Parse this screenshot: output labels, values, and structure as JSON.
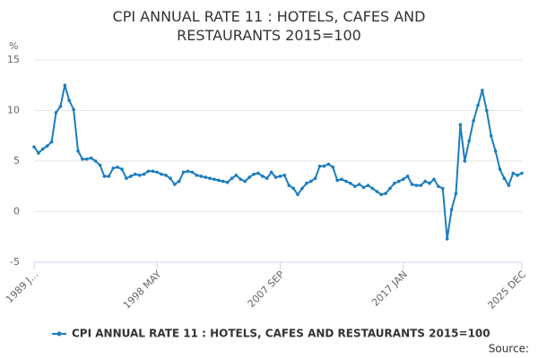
{
  "chart_data": {
    "type": "line",
    "title": "CPI ANNUAL RATE 11 : HOTELS, CAFES AND RESTAURANTS 2015=100",
    "y_unit": "%",
    "source": "Source:",
    "categories": [
      "1989 J...",
      null,
      null,
      null,
      null,
      null,
      null,
      null,
      null,
      null,
      null,
      null,
      null,
      null,
      null,
      null,
      null,
      null,
      null,
      null,
      null,
      null,
      null,
      null,
      null,
      null,
      null,
      null,
      "1998 MAY",
      null,
      null,
      null,
      null,
      null,
      null,
      null,
      null,
      null,
      null,
      null,
      null,
      null,
      null,
      null,
      null,
      null,
      null,
      null,
      null,
      null,
      null,
      null,
      null,
      null,
      null,
      null,
      "2007 SEP",
      null,
      null,
      null,
      null,
      null,
      null,
      null,
      null,
      null,
      null,
      null,
      null,
      null,
      null,
      null,
      null,
      null,
      null,
      null,
      null,
      null,
      null,
      null,
      null,
      null,
      null,
      null,
      "2017 JAN",
      null,
      null,
      null,
      null,
      null,
      null,
      null,
      null,
      null,
      null,
      null,
      null,
      null,
      null,
      null,
      null,
      null,
      null,
      null,
      null,
      null,
      null,
      null,
      null,
      null,
      null,
      "2025 DEC"
    ],
    "series": [
      {
        "name": "CPI ANNUAL RATE 11 : HOTELS, CAFES AND RESTAURANTS 2015=100",
        "color": "#1a7dc0",
        "values": [
          6.4,
          5.8,
          6.2,
          6.5,
          6.9,
          9.8,
          10.4,
          12.5,
          11.0,
          10.1,
          6.0,
          5.2,
          5.2,
          5.3,
          5.0,
          4.6,
          3.5,
          3.5,
          4.3,
          4.4,
          4.2,
          3.3,
          3.5,
          3.7,
          3.6,
          3.7,
          4.0,
          4.0,
          3.9,
          3.7,
          3.6,
          3.3,
          2.7,
          3.0,
          3.9,
          4.0,
          3.9,
          3.6,
          3.5,
          3.4,
          3.3,
          3.2,
          3.1,
          3.0,
          2.9,
          3.3,
          3.6,
          3.2,
          3.0,
          3.4,
          3.7,
          3.8,
          3.5,
          3.3,
          3.9,
          3.4,
          3.5,
          3.6,
          2.6,
          2.3,
          1.7,
          2.3,
          2.8,
          3.0,
          3.3,
          4.5,
          4.5,
          4.7,
          4.4,
          3.1,
          3.2,
          3.0,
          2.8,
          2.5,
          2.7,
          2.4,
          2.6,
          2.3,
          2.0,
          1.7,
          1.8,
          2.3,
          2.8,
          3.0,
          3.2,
          3.5,
          2.7,
          2.6,
          2.6,
          3.0,
          2.8,
          3.2,
          2.5,
          2.3,
          -2.7,
          0.2,
          1.8,
          8.6,
          5.0,
          7.0,
          9.0,
          10.5,
          12.0,
          10.0,
          7.5,
          6.0,
          4.2,
          3.3,
          2.6,
          3.8,
          3.6,
          3.8
        ]
      }
    ],
    "ylim": [
      -5,
      15
    ],
    "yticks": [
      -5,
      0,
      5,
      10,
      15
    ],
    "grid": true
  }
}
